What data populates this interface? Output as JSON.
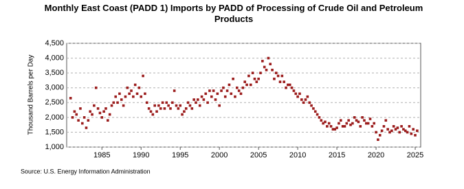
{
  "chart_data": {
    "type": "scatter",
    "title": "Monthly East Coast (PADD 1) Imports by PADD of Processing of Crude Oil and Petroleum Products",
    "y_label": "Thousand Barrels per Day",
    "source": "Source: U.S. Energy Information Administration",
    "color": "#9b1c1c",
    "grid": true,
    "xlim": [
      1980.5,
      2025.7
    ],
    "ylim": [
      1000,
      4500
    ],
    "xticks": [
      1985,
      1990,
      1995,
      2000,
      2005,
      2010,
      2015,
      2020,
      2025
    ],
    "yticks": [
      {
        "value": 1000,
        "label": "1,000"
      },
      {
        "value": 1500,
        "label": "1,500"
      },
      {
        "value": 2000,
        "label": "2,000"
      },
      {
        "value": 2500,
        "label": "2,500"
      },
      {
        "value": 3000,
        "label": "3,000"
      },
      {
        "value": 3500,
        "label": "3,500"
      },
      {
        "value": 4000,
        "label": "4,000"
      },
      {
        "value": 4500,
        "label": "4,500"
      }
    ],
    "x": [
      1981,
      1981.25,
      1981.5,
      1981.75,
      1982,
      1982.25,
      1982.5,
      1982.75,
      1983,
      1983.25,
      1983.5,
      1983.75,
      1984,
      1984.25,
      1984.5,
      1984.75,
      1985,
      1985.25,
      1985.5,
      1985.75,
      1986,
      1986.25,
      1986.5,
      1986.75,
      1987,
      1987.25,
      1987.5,
      1987.75,
      1988,
      1988.25,
      1988.5,
      1988.75,
      1989,
      1989.25,
      1989.5,
      1989.75,
      1990,
      1990.25,
      1990.5,
      1990.75,
      1991,
      1991.25,
      1991.5,
      1991.75,
      1992,
      1992.25,
      1992.5,
      1992.75,
      1993,
      1993.25,
      1993.5,
      1993.75,
      1994,
      1994.25,
      1994.5,
      1994.75,
      1995,
      1995.25,
      1995.5,
      1995.75,
      1996,
      1996.25,
      1996.5,
      1996.75,
      1997,
      1997.25,
      1997.5,
      1997.75,
      1998,
      1998.25,
      1998.5,
      1998.75,
      1999,
      1999.25,
      1999.5,
      1999.75,
      2000,
      2000.25,
      2000.5,
      2000.75,
      2001,
      2001.25,
      2001.5,
      2001.75,
      2002,
      2002.25,
      2002.5,
      2002.75,
      2003,
      2003.25,
      2003.5,
      2003.75,
      2004,
      2004.25,
      2004.5,
      2004.75,
      2005,
      2005.25,
      2005.5,
      2005.75,
      2006,
      2006.25,
      2006.5,
      2006.75,
      2007,
      2007.25,
      2007.5,
      2007.75,
      2008,
      2008.25,
      2008.5,
      2008.75,
      2009,
      2009.25,
      2009.5,
      2009.75,
      2010,
      2010.25,
      2010.5,
      2010.75,
      2011,
      2011.25,
      2011.5,
      2011.75,
      2012,
      2012.25,
      2012.5,
      2012.75,
      2013,
      2013.25,
      2013.5,
      2013.75,
      2014,
      2014.25,
      2014.5,
      2014.75,
      2015,
      2015.25,
      2015.5,
      2015.75,
      2016,
      2016.25,
      2016.5,
      2016.75,
      2017,
      2017.25,
      2017.5,
      2017.75,
      2018,
      2018.25,
      2018.5,
      2018.75,
      2019,
      2019.25,
      2019.5,
      2019.75,
      2020,
      2020.25,
      2020.5,
      2020.75,
      2021,
      2021.25,
      2021.5,
      2021.75,
      2022,
      2022.25,
      2022.5,
      2022.75,
      2023,
      2023.25,
      2023.5,
      2023.75,
      2024,
      2024.25,
      2024.5,
      2024.75,
      2025,
      2025.25
    ],
    "values": [
      2650,
      2000,
      2200,
      2100,
      1900,
      2300,
      1800,
      2000,
      1650,
      1900,
      2200,
      2100,
      2400,
      3000,
      2300,
      2150,
      2000,
      2200,
      2300,
      1900,
      2100,
      2400,
      2500,
      2700,
      2500,
      2800,
      2600,
      2400,
      2700,
      3000,
      2800,
      2900,
      2700,
      3100,
      2800,
      3000,
      2700,
      3400,
      2800,
      2500,
      2300,
      2200,
      2100,
      2400,
      2200,
      2400,
      2300,
      2500,
      2300,
      2500,
      2400,
      2300,
      2500,
      2900,
      2400,
      2300,
      2400,
      2100,
      2200,
      2300,
      2500,
      2400,
      2300,
      2600,
      2500,
      2600,
      2400,
      2700,
      2600,
      2800,
      2500,
      2900,
      2700,
      2900,
      2600,
      2800,
      2400,
      2900,
      3000,
      2700,
      2900,
      3100,
      2800,
      3300,
      2700,
      3000,
      2900,
      2800,
      3000,
      3200,
      3100,
      3400,
      3100,
      3500,
      3300,
      3200,
      3300,
      3500,
      3900,
      3700,
      3600,
      4000,
      3800,
      3600,
      3300,
      3500,
      3400,
      3200,
      3400,
      3200,
      3000,
      3100,
      3100,
      3000,
      2900,
      2800,
      2700,
      2800,
      2600,
      2500,
      2600,
      2700,
      2500,
      2400,
      2300,
      2200,
      2100,
      2000,
      1900,
      1800,
      1850,
      1700,
      1800,
      1700,
      1600,
      1600,
      1650,
      1800,
      1900,
      1700,
      1700,
      1800,
      1900,
      1750,
      1800,
      2000,
      1900,
      1850,
      1700,
      2000,
      1900,
      1800,
      1800,
      1950,
      1700,
      1800,
      1500,
      1250,
      1400,
      1550,
      1700,
      1900,
      1600,
      1500,
      1550,
      1700,
      1600,
      1650,
      1500,
      1700,
      1600,
      1550,
      1500,
      1700,
      1450,
      1600,
      1400,
      1550
    ]
  }
}
